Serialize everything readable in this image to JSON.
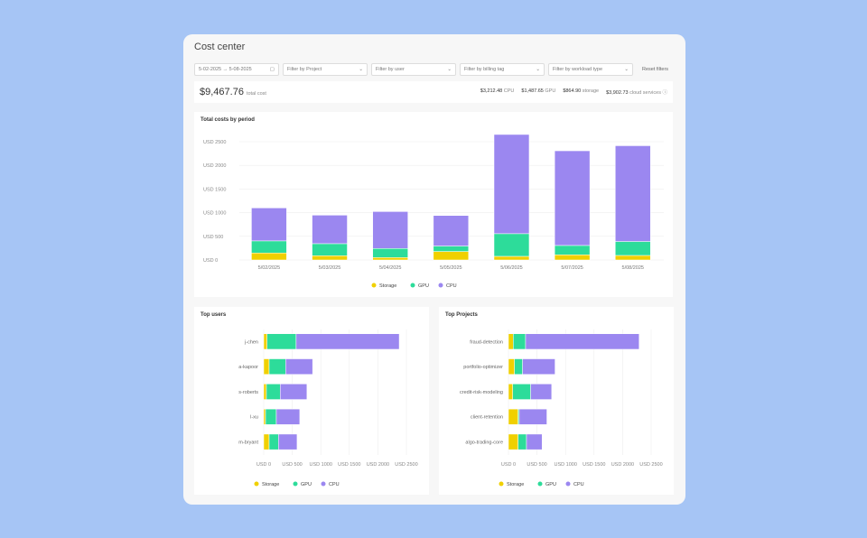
{
  "header": {
    "title": "Cost center"
  },
  "filters": {
    "date_range": "5-02-2025 → 5-08-2025",
    "project": "Filter by Project",
    "user": "Filter by user",
    "billing_tag": "Filter by billing tag",
    "workload_type": "Filter by workload type",
    "reset": "Reset filters"
  },
  "summary": {
    "total": "$9,467.76",
    "total_label": "total cost",
    "items": [
      {
        "value": "$3,212.48",
        "label": "CPU"
      },
      {
        "value": "$1,487.65",
        "label": "GPU"
      },
      {
        "value": "$864.90",
        "label": "storage"
      },
      {
        "value": "$3,902.73",
        "label": "cloud services"
      }
    ]
  },
  "colors": {
    "Storage": "#f0d000",
    "GPU": "#2ddc9a",
    "CPU": "#9b87f0"
  },
  "chart_data": [
    {
      "type": "bar",
      "stacked": true,
      "orientation": "vertical",
      "title": "Total costs by period",
      "categories": [
        "5/02/2025",
        "5/03/2025",
        "5/04/2025",
        "5/05/2025",
        "5/06/2025",
        "5/07/2025",
        "5/08/2025"
      ],
      "series": [
        {
          "name": "Storage",
          "values": [
            148,
            90,
            52,
            180,
            77,
            109,
            96
          ]
        },
        {
          "name": "GPU",
          "values": [
            255,
            255,
            191,
            115,
            479,
            198,
            295
          ]
        },
        {
          "name": "CPU",
          "values": [
            697,
            602,
            780,
            645,
            2097,
            2001,
            2024
          ]
        }
      ],
      "ylim": [
        0,
        2500
      ],
      "yticks": [
        "USD 0",
        "USD 500",
        "USD 1000",
        "USD 1500",
        "USD 2000",
        "USD 2500"
      ],
      "grid": true,
      "legend": "bottom"
    },
    {
      "type": "bar",
      "stacked": true,
      "orientation": "horizontal",
      "title": "Top users",
      "categories": [
        "j-chen",
        "a-kapoor",
        "s-roberts",
        "l-xu",
        "m-bryant"
      ],
      "series": [
        {
          "name": "Storage",
          "values": [
            58,
            95,
            47,
            32,
            95
          ]
        },
        {
          "name": "GPU",
          "values": [
            510,
            289,
            242,
            189,
            163
          ]
        },
        {
          "name": "CPU",
          "values": [
            1806,
            473,
            468,
            410,
            326
          ]
        }
      ],
      "xlim": [
        0,
        2500
      ],
      "xticks": [
        "USD 0",
        "USD 500",
        "USD 1000",
        "USD 1500",
        "USD 2000",
        "USD 2500"
      ],
      "grid": true,
      "legend": "bottom"
    },
    {
      "type": "bar",
      "stacked": true,
      "orientation": "horizontal",
      "title": "Top Projects",
      "categories": [
        "fraud-detection",
        "portfolio-optimizer",
        "credit-risk-modeling",
        "client-retention",
        "algo-trading-core"
      ],
      "series": [
        {
          "name": "Storage",
          "values": [
            84,
            105,
            74,
            168,
            168
          ]
        },
        {
          "name": "GPU",
          "values": [
            216,
            142,
            315,
            21,
            148
          ]
        },
        {
          "name": "CPU",
          "values": [
            1989,
            569,
            368,
            484,
            273
          ]
        }
      ],
      "xlim": [
        0,
        2500
      ],
      "xticks": [
        "USD 0",
        "USD 500",
        "USD 1000",
        "USD 1500",
        "USD 2000",
        "USD 2500"
      ],
      "grid": true,
      "legend": "bottom"
    }
  ]
}
